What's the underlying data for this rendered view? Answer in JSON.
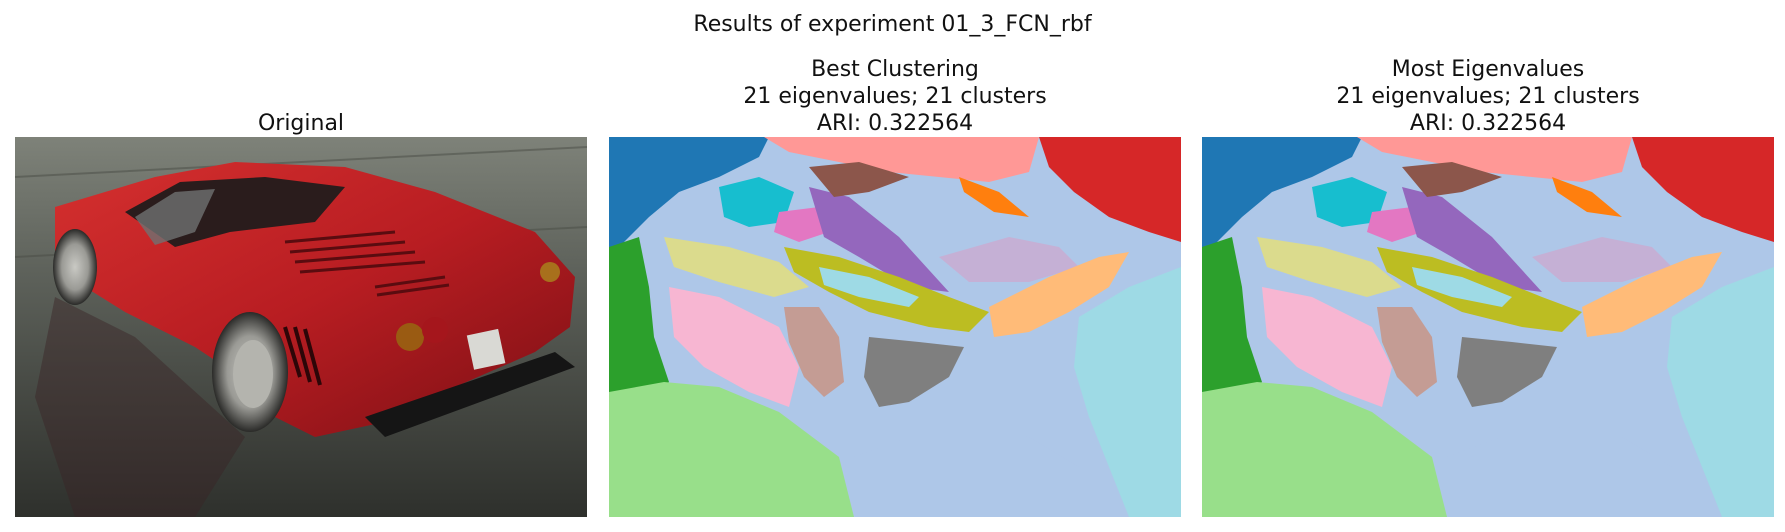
{
  "figure": {
    "suptitle": "Results of experiment 01_3_FCN_rbf"
  },
  "panels": [
    {
      "id": "original",
      "title_lines": [
        "Original"
      ],
      "content": "photo"
    },
    {
      "id": "best",
      "title_lines": [
        "Best Clustering",
        "21 eigenvalues; 21 clusters",
        "ARI: 0.322564"
      ],
      "content": "segmentation"
    },
    {
      "id": "most",
      "title_lines": [
        "Most Eigenvalues",
        "21 eigenvalues; 21 clusters",
        "ARI: 0.322564"
      ],
      "content": "segmentation"
    }
  ],
  "palette": {
    "blue": "#1f77b4",
    "light_blue": "#aec7e8",
    "orange": "#ff7f0e",
    "light_orange": "#ffbb78",
    "green": "#2ca02c",
    "light_green": "#98df8a",
    "red": "#d62728",
    "pink": "#ff9896",
    "purple": "#9467bd",
    "lavender": "#c5b0d5",
    "brown": "#8c564b",
    "tan": "#c49c94",
    "magenta": "#e377c2",
    "light_pink": "#f7b6d2",
    "gray": "#7f7f7f",
    "olive": "#bcbd22",
    "khaki": "#dbdb8d",
    "cyan": "#17becf",
    "light_cyan": "#9edae5"
  }
}
